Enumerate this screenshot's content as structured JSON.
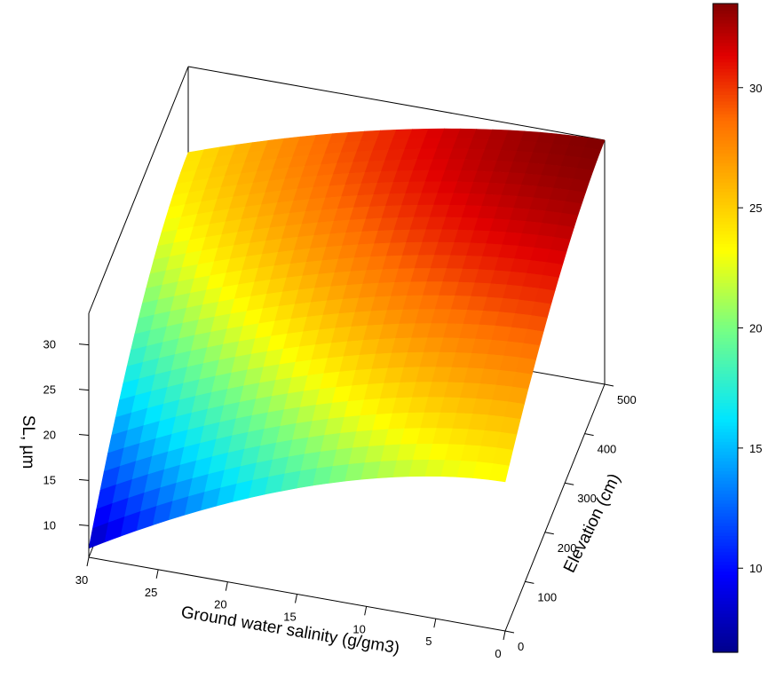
{
  "chart_data": {
    "type": "surface3d",
    "title": "",
    "x_axis": {
      "label": "Ground water salinity (g/gm3)",
      "range": [
        0,
        30
      ],
      "ticks": [
        0,
        5,
        10,
        15,
        20,
        25,
        30
      ],
      "tick_labels": [
        "0",
        "5",
        "10",
        "15",
        "20",
        "25",
        "30"
      ]
    },
    "y_axis": {
      "label": "Elevation (cm)",
      "range": [
        0,
        500
      ],
      "ticks": [
        0,
        100,
        200,
        300,
        400,
        500
      ],
      "tick_labels": [
        "0",
        "100",
        "200",
        "300",
        "400",
        "500"
      ]
    },
    "z_axis": {
      "label": "SL, µm",
      "range": [
        6.5,
        33.5
      ],
      "ticks": [
        10,
        15,
        20,
        25,
        30
      ],
      "tick_labels": [
        "10",
        "15",
        "20",
        "25",
        "30"
      ]
    },
    "surface_corners": [
      {
        "salinity": 30,
        "elevation": 0,
        "SL": 7.5
      },
      {
        "salinity": 30,
        "elevation": 500,
        "SL": 24
      },
      {
        "salinity": 0,
        "elevation": 0,
        "SL": 23
      },
      {
        "salinity": 0,
        "elevation": 500,
        "SL": 33.5
      }
    ],
    "colorbar": {
      "colormap": "jet",
      "range": [
        6.5,
        33.5
      ],
      "ticks": [
        10,
        15,
        20,
        25,
        30
      ],
      "tick_labels": [
        "10",
        "15",
        "20",
        "25",
        "30"
      ]
    }
  }
}
